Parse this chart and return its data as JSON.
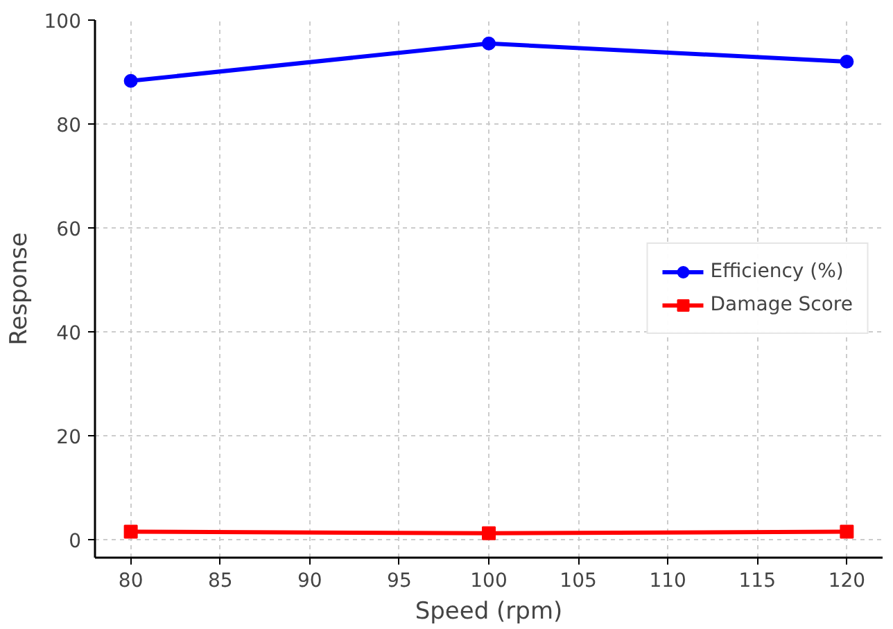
{
  "chart_data": {
    "type": "line",
    "xlabel": "Speed (rpm)",
    "ylabel": "Response",
    "x": [
      80,
      100,
      120
    ],
    "series": [
      {
        "name": "Efficiency (%)",
        "color": "#0000ff",
        "values": [
          88.3,
          95.5,
          92.0
        ],
        "marker": "circle"
      },
      {
        "name": "Damage Score",
        "color": "#ff0000",
        "values": [
          1.5,
          1.2,
          1.5
        ],
        "marker": "square"
      }
    ],
    "xlim": [
      78,
      122
    ],
    "ylim": [
      -3.5,
      100
    ],
    "xticks": [
      80,
      85,
      90,
      95,
      100,
      105,
      110,
      115,
      120
    ],
    "yticks": [
      0,
      20,
      40,
      60,
      80,
      100
    ],
    "grid": true,
    "legend": "right",
    "line_style": "solid"
  }
}
